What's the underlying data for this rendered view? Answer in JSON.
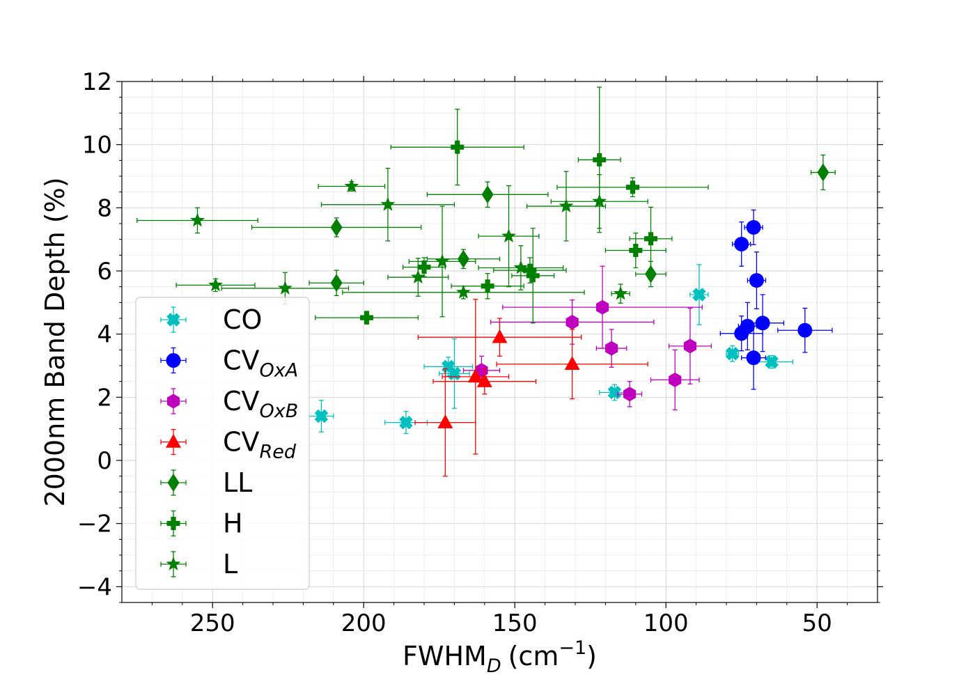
{
  "chart_data": {
    "type": "scatter",
    "title": "",
    "xlabel_main": "FWHM",
    "xlabel_sub": "D",
    "xlabel_unit": "(cm",
    "xlabel_sup": "−1",
    "xlabel_close": ")",
    "ylabel": "2000nm Band Depth (%)",
    "xlim": [
      280,
      30
    ],
    "ylim": [
      -4.5,
      12
    ],
    "x_ticks": [
      250,
      200,
      150,
      100,
      50
    ],
    "y_ticks": [
      -4,
      -2,
      0,
      2,
      4,
      6,
      8,
      10,
      12
    ],
    "y_tick_labels": [
      "−4",
      "−2",
      "0",
      "2",
      "4",
      "6",
      "8",
      "10",
      "12"
    ],
    "grid": true,
    "legend_position": "lower-left",
    "series": [
      {
        "name": "CO",
        "sub": "",
        "marker": "x",
        "color": "#00bfbf",
        "points": [
          {
            "x": 214,
            "y": 1.4,
            "xerr": 4,
            "yerr": 0.5
          },
          {
            "x": 186,
            "y": 1.2,
            "xerr": 7,
            "yerr": 0.35
          },
          {
            "x": 172,
            "y": 2.97,
            "xerr": 8,
            "yerr": 0.3
          },
          {
            "x": 170,
            "y": 2.75,
            "xerr": 5,
            "yerr": 1.1
          },
          {
            "x": 117,
            "y": 2.15,
            "xerr": 5,
            "yerr": 0.25
          },
          {
            "x": 89,
            "y": 5.25,
            "xerr": 3,
            "yerr": 0.95
          },
          {
            "x": 78,
            "y": 3.38,
            "xerr": 2,
            "yerr": 0.25
          },
          {
            "x": 65,
            "y": 3.12,
            "xerr": 7,
            "yerr": 0.2
          }
        ]
      },
      {
        "name": "CV",
        "sub": "OxA",
        "marker": "circle",
        "color": "#0000ff",
        "points": [
          {
            "x": 75,
            "y": 6.85,
            "xerr": 3,
            "yerr": 0.7
          },
          {
            "x": 71,
            "y": 7.38,
            "xerr": 3,
            "yerr": 0.55
          },
          {
            "x": 70,
            "y": 5.7,
            "xerr": 3,
            "yerr": 0.9
          },
          {
            "x": 73,
            "y": 4.25,
            "xerr": 3,
            "yerr": 0.75
          },
          {
            "x": 75,
            "y": 4.02,
            "xerr": 7,
            "yerr": 0.55
          },
          {
            "x": 68,
            "y": 4.35,
            "xerr": 7,
            "yerr": 0.9
          },
          {
            "x": 71,
            "y": 3.25,
            "xerr": 4,
            "yerr": 1.0
          },
          {
            "x": 54,
            "y": 4.12,
            "xerr": 9,
            "yerr": 0.7
          }
        ]
      },
      {
        "name": "CV",
        "sub": "OxB",
        "marker": "hexagon",
        "color": "#bf00bf",
        "points": [
          {
            "x": 161,
            "y": 2.85,
            "xerr": 6,
            "yerr": 0.45
          },
          {
            "x": 131,
            "y": 4.38,
            "xerr": 27,
            "yerr": 0.7
          },
          {
            "x": 121,
            "y": 4.85,
            "xerr": 33,
            "yerr": 1.3
          },
          {
            "x": 118,
            "y": 3.55,
            "xerr": 5,
            "yerr": 0.6
          },
          {
            "x": 112,
            "y": 2.1,
            "xerr": 4,
            "yerr": 0.4
          },
          {
            "x": 97,
            "y": 2.55,
            "xerr": 8,
            "yerr": 0.95
          },
          {
            "x": 92,
            "y": 3.62,
            "xerr": 7,
            "yerr": 1.2
          }
        ]
      },
      {
        "name": "CV",
        "sub": "Red",
        "marker": "triangle",
        "color": "#ff0000",
        "points": [
          {
            "x": 173,
            "y": 1.2,
            "xerr": 10,
            "yerr": 1.7
          },
          {
            "x": 163,
            "y": 2.65,
            "xerr": 11,
            "yerr": 2.45
          },
          {
            "x": 160,
            "y": 2.5,
            "xerr": 17,
            "yerr": 0.4
          },
          {
            "x": 155,
            "y": 3.9,
            "xerr": 27,
            "yerr": 0.6
          },
          {
            "x": 131,
            "y": 3.05,
            "xerr": 25,
            "yerr": 1.1
          }
        ]
      },
      {
        "name": "LL",
        "sub": "",
        "marker": "diamond",
        "color": "#008000",
        "points": [
          {
            "x": 209,
            "y": 7.38,
            "xerr": 28,
            "yerr": 0.3
          },
          {
            "x": 209,
            "y": 5.62,
            "xerr": 9,
            "yerr": 0.4
          },
          {
            "x": 167,
            "y": 6.38,
            "xerr": 12,
            "yerr": 0.3
          },
          {
            "x": 159,
            "y": 8.42,
            "xerr": 20,
            "yerr": 0.4
          },
          {
            "x": 105,
            "y": 5.9,
            "xerr": 5,
            "yerr": 0.4
          },
          {
            "x": 48,
            "y": 9.12,
            "xerr": 4,
            "yerr": 0.55
          }
        ]
      },
      {
        "name": "H",
        "sub": "",
        "marker": "plus",
        "color": "#008000",
        "points": [
          {
            "x": 199,
            "y": 4.52,
            "xerr": 17,
            "yerr": 0.2
          },
          {
            "x": 180,
            "y": 6.12,
            "xerr": 7,
            "yerr": 0.3
          },
          {
            "x": 169,
            "y": 9.92,
            "xerr": 22,
            "yerr": 1.2
          },
          {
            "x": 159,
            "y": 5.52,
            "xerr": 12,
            "yerr": 0.4
          },
          {
            "x": 145,
            "y": 6.02,
            "xerr": 12,
            "yerr": 0.4
          },
          {
            "x": 144,
            "y": 5.85,
            "xerr": 7,
            "yerr": 1.5
          },
          {
            "x": 122,
            "y": 9.52,
            "xerr": 7,
            "yerr": 2.3
          },
          {
            "x": 111,
            "y": 8.65,
            "xerr": 25,
            "yerr": 0.3
          },
          {
            "x": 110,
            "y": 6.65,
            "xerr": 10,
            "yerr": 0.55
          },
          {
            "x": 105,
            "y": 7.02,
            "xerr": 7,
            "yerr": 1.0
          }
        ]
      },
      {
        "name": "L",
        "sub": "",
        "marker": "star",
        "color": "#008000",
        "points": [
          {
            "x": 255,
            "y": 7.6,
            "xerr": 20,
            "yerr": 0.4
          },
          {
            "x": 249,
            "y": 5.55,
            "xerr": 13,
            "yerr": 0.2
          },
          {
            "x": 226,
            "y": 5.45,
            "xerr": 21,
            "yerr": 0.5
          },
          {
            "x": 204,
            "y": 8.68,
            "xerr": 11,
            "yerr": 0.15
          },
          {
            "x": 192,
            "y": 8.1,
            "xerr": 22,
            "yerr": 1.15
          },
          {
            "x": 182,
            "y": 5.8,
            "xerr": 10,
            "yerr": 0.6
          },
          {
            "x": 174,
            "y": 6.3,
            "xerr": 11,
            "yerr": 1.75
          },
          {
            "x": 167,
            "y": 5.32,
            "xerr": 40,
            "yerr": 0.2
          },
          {
            "x": 152,
            "y": 7.1,
            "xerr": 10,
            "yerr": 1.6
          },
          {
            "x": 148,
            "y": 6.1,
            "xerr": 14,
            "yerr": 0.7
          },
          {
            "x": 133,
            "y": 8.05,
            "xerr": 13,
            "yerr": 1.1
          },
          {
            "x": 122,
            "y": 8.2,
            "xerr": 16,
            "yerr": 0.85
          },
          {
            "x": 115,
            "y": 5.28,
            "xerr": 3,
            "yerr": 0.3
          }
        ]
      }
    ]
  }
}
